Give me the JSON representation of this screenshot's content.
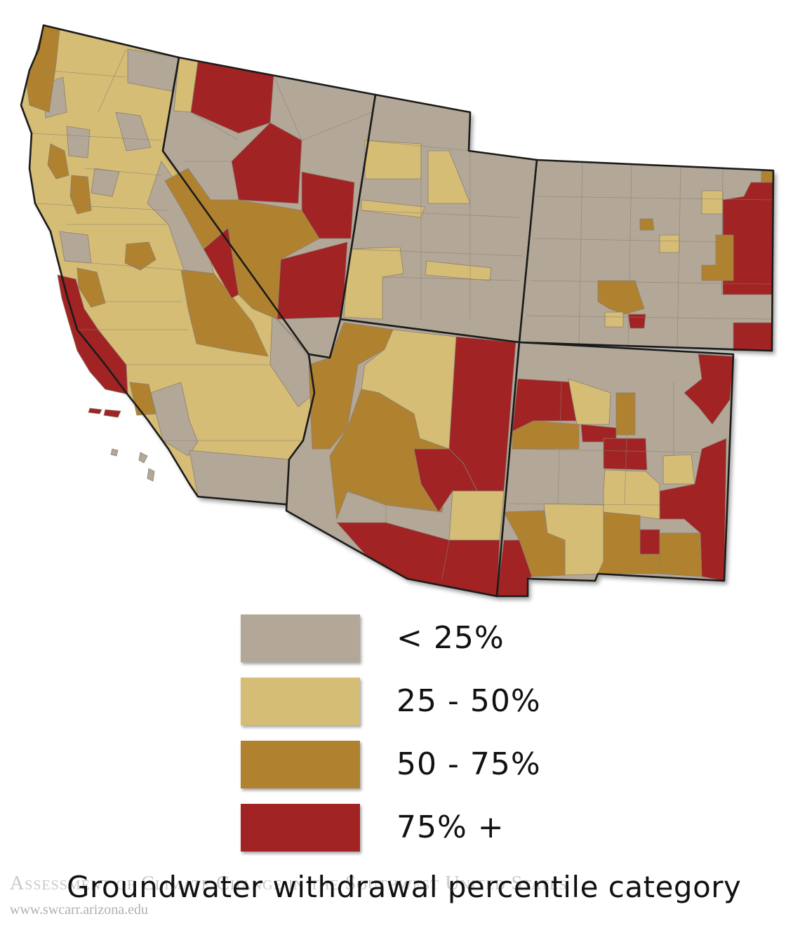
{
  "colors": {
    "gray": "#b3a898",
    "light_tan": "#d6bd75",
    "gold": "#b0822f",
    "red": "#a12323",
    "border": "#1b1b1b",
    "county_line": "#8a7f72"
  },
  "legend": [
    {
      "label": "< 25%",
      "color": "#b3a898"
    },
    {
      "label": "25 - 50%",
      "color": "#d6bd75"
    },
    {
      "label": "50 - 75%",
      "color": "#b0822f"
    },
    {
      "label": "75% +",
      "color": "#a12323"
    }
  ],
  "title": "Groundwater withdrawal percentile category",
  "watermark": {
    "title": "Assessment of Climate Change in the Southwest United States",
    "url": "www.swcarr.arizona.edu"
  }
}
